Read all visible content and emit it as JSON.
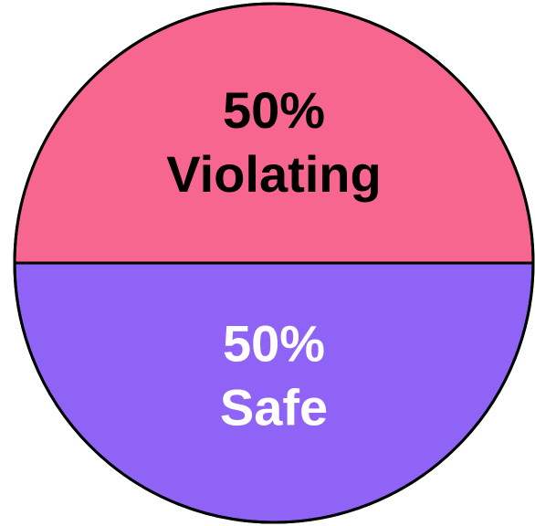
{
  "chart_data": {
    "type": "pie",
    "categories": [
      "Violating",
      "Safe"
    ],
    "values": [
      50,
      50
    ],
    "value_labels": [
      "50%",
      "50%"
    ],
    "colors": [
      "#f7668e",
      "#8e63f5"
    ],
    "text_colors": [
      "#000000",
      "#ffffff"
    ]
  }
}
